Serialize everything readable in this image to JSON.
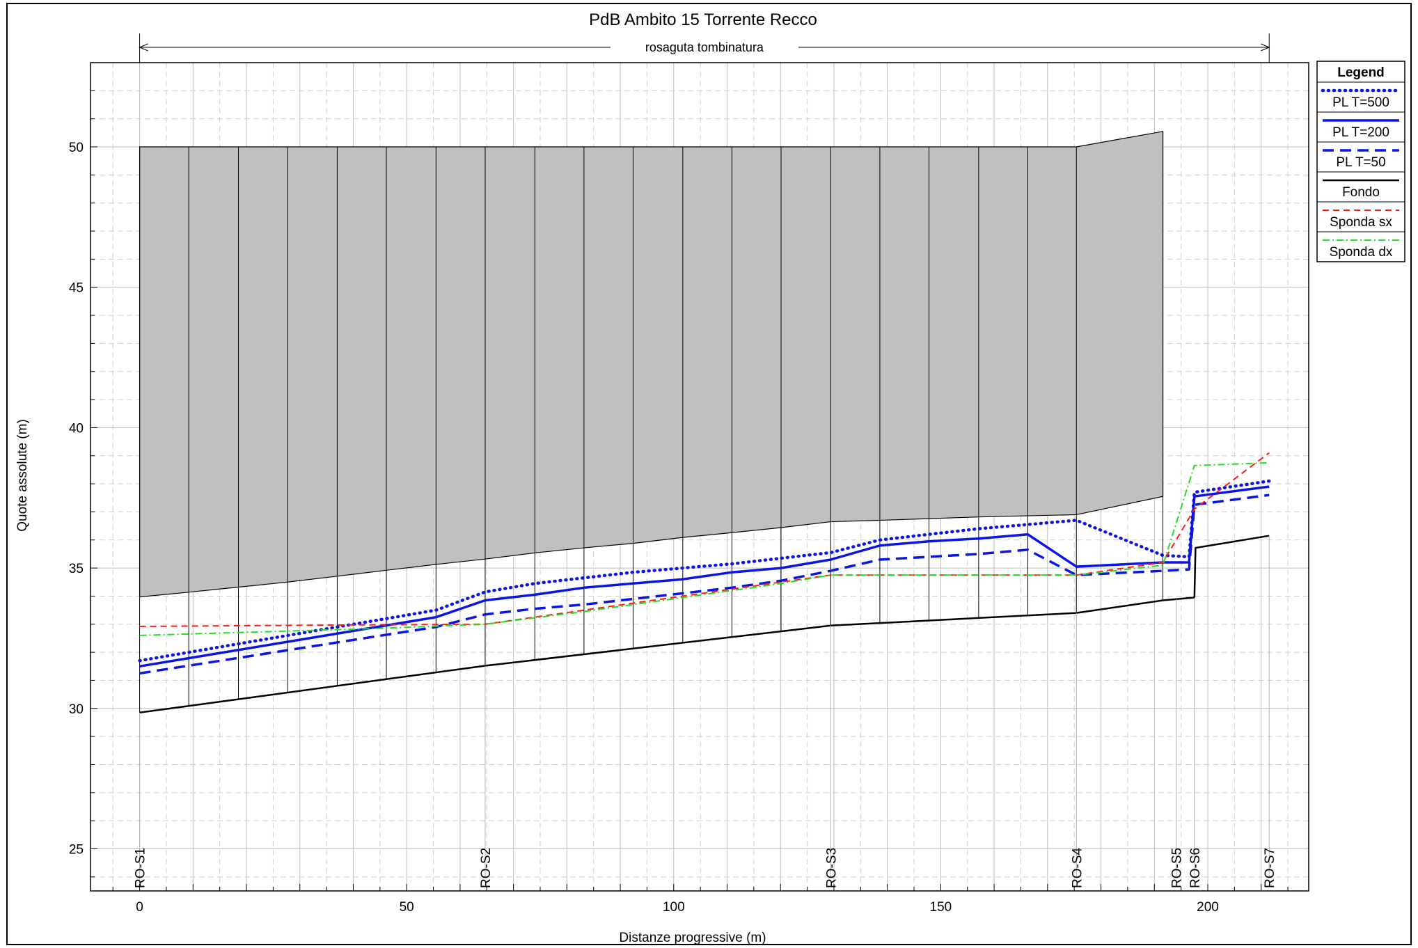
{
  "chart_data": {
    "type": "line",
    "title": "PdB Ambito 15 Torrente Recco",
    "subtitle": "rosaguta tombinatura",
    "xlabel": "Distanze progressive  (m)",
    "ylabel": "Quote assolute (m)",
    "xlim": [
      -9.2,
      218.9
    ],
    "ylim": [
      23.5,
      53
    ],
    "xticks": [
      0,
      50,
      100,
      150,
      200
    ],
    "yticks": [
      25,
      30,
      35,
      40,
      45,
      50
    ],
    "grid": true,
    "legend_title": "Legend",
    "legend_position": "right",
    "colors": {
      "pl500": "#0a14e6",
      "pl200": "#0a14e6",
      "pl50": "#0a14e6",
      "fondo": "#000000",
      "sponda_sx": "#ff1a1a",
      "sponda_dx": "#22dd22",
      "culvert_fill": "#c0c0c0"
    },
    "annotation": {
      "label": "rosaguta tombinatura",
      "x_start": 0,
      "x_end": 211.5
    },
    "sections": [
      {
        "name": "RO-S1",
        "x": 0
      },
      {
        "name": "RO-S2",
        "x": 64.7
      },
      {
        "name": "RO-S3",
        "x": 129.4
      },
      {
        "name": "RO-S4",
        "x": 175.4
      },
      {
        "name": "RO-S5",
        "x": 194.1
      },
      {
        "name": "RO-S6",
        "x": 197.5
      },
      {
        "name": "RO-S7",
        "x": 211.5
      }
    ],
    "culvert": {
      "stations": [
        0,
        9.2,
        18.5,
        27.7,
        37,
        46.2,
        55.5,
        64.7,
        74,
        83.2,
        92.4,
        101.7,
        110.9,
        120.1,
        129.4,
        138.6,
        147.8,
        157.1,
        166.3,
        175.4,
        191.6
      ],
      "top": [
        50,
        50,
        50,
        50,
        50,
        50,
        50,
        50,
        50,
        50,
        50,
        50,
        50,
        50,
        50,
        50,
        50,
        50,
        50,
        50,
        50.55
      ],
      "soffit": [
        33.97,
        34.14,
        34.32,
        34.5,
        34.71,
        34.92,
        35.13,
        35.32,
        35.54,
        35.72,
        35.88,
        36.09,
        36.26,
        36.44,
        36.65,
        36.7,
        36.76,
        36.82,
        36.86,
        36.9,
        37.55
      ]
    },
    "series": [
      {
        "name": "PL  T=500",
        "style": "dotted",
        "x": [
          0,
          55.5,
          64.7,
          74,
          83.2,
          92.4,
          101.7,
          110.9,
          120.1,
          129.4,
          138.6,
          147.8,
          157.1,
          166.3,
          175.4,
          191.6,
          196.5,
          197.5,
          211.5
        ],
        "y": [
          31.7,
          33.5,
          34.15,
          34.45,
          34.65,
          34.85,
          35.0,
          35.15,
          35.35,
          35.55,
          36.0,
          36.2,
          36.4,
          36.55,
          36.7,
          35.45,
          35.4,
          37.7,
          38.1
        ]
      },
      {
        "name": "PL  T=200",
        "style": "solid",
        "x": [
          0,
          55.5,
          64.7,
          74,
          83.2,
          92.4,
          101.7,
          110.9,
          120.1,
          129.4,
          138.6,
          147.8,
          157.1,
          166.3,
          175.4,
          191.6,
          196.5,
          197.5,
          211.5
        ],
        "y": [
          31.5,
          33.25,
          33.85,
          34.05,
          34.3,
          34.45,
          34.6,
          34.85,
          35.0,
          35.3,
          35.8,
          35.95,
          36.05,
          36.2,
          35.05,
          35.2,
          35.2,
          37.55,
          37.9
        ]
      },
      {
        "name": "PL  T=50",
        "style": "dashed",
        "x": [
          0,
          55.5,
          64.7,
          74,
          83.2,
          92.4,
          101.7,
          110.9,
          120.1,
          129.4,
          138.6,
          147.8,
          157.1,
          166.3,
          175.4,
          191.6,
          196.5,
          197.5,
          211.5
        ],
        "y": [
          31.25,
          32.9,
          33.35,
          33.55,
          33.7,
          33.9,
          34.1,
          34.3,
          34.55,
          34.9,
          35.3,
          35.4,
          35.5,
          35.65,
          34.75,
          34.9,
          34.95,
          37.25,
          37.6
        ]
      },
      {
        "name": "Fondo",
        "style": "solid-black",
        "x": [
          0,
          64.7,
          129.4,
          175.4,
          191.6,
          197.5,
          197.7,
          211.5
        ],
        "y": [
          29.85,
          31.52,
          32.95,
          33.4,
          33.85,
          33.95,
          35.72,
          36.15
        ]
      },
      {
        "name": "Sponda sx",
        "style": "dashed-red",
        "x": [
          0,
          45,
          64.7,
          83.2,
          101.7,
          120.1,
          129.4,
          175.4,
          191.6,
          197.5,
          211.5
        ],
        "y": [
          32.92,
          32.98,
          33.0,
          33.5,
          34.0,
          34.5,
          34.75,
          34.75,
          35.2,
          37.1,
          39.1
        ]
      },
      {
        "name": "Sponda dx",
        "style": "dashdot-green",
        "x": [
          0,
          45,
          64.7,
          83.2,
          101.7,
          120.1,
          129.4,
          175.4,
          191.6,
          197.5,
          211.5
        ],
        "y": [
          32.6,
          32.85,
          33.0,
          33.45,
          33.95,
          34.45,
          34.75,
          34.75,
          35.1,
          38.65,
          38.75
        ]
      }
    ]
  }
}
